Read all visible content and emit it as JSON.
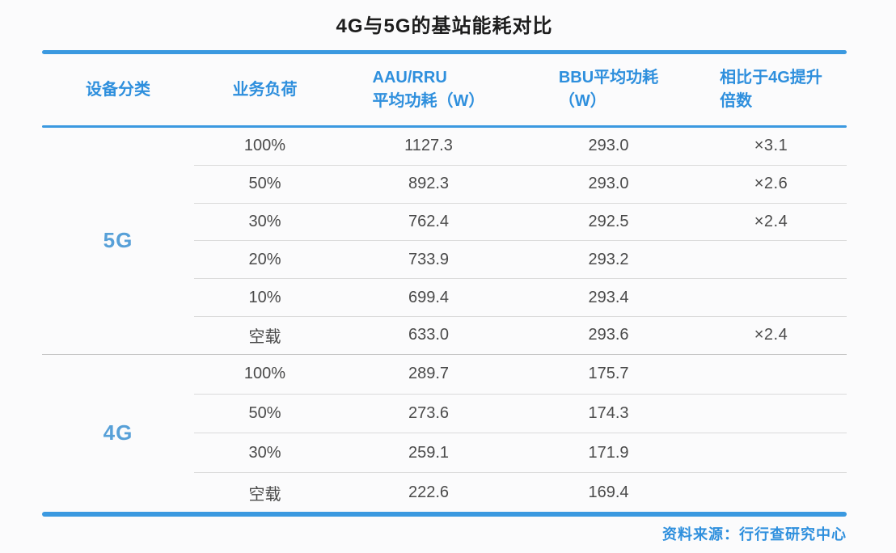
{
  "title": "4G与5G的基站能耗对比",
  "colors": {
    "accent_line": "#3b99e0",
    "header_text": "#2e8fdd",
    "category_text": "#57a0d8",
    "data_text": "#4a4a4a",
    "source_text": "#2e8fdd",
    "row_divider": "#dbdbdb",
    "group_divider": "#c6c6c6",
    "background": "#fbfbfc"
  },
  "table": {
    "headers": [
      "设备分类",
      "业务负荷",
      "AAU/RRU\n平均功耗（W）",
      "BBU平均功耗\n（W）",
      "相比于4G提升\n倍数"
    ],
    "groups": [
      {
        "label": "5G",
        "rows": [
          [
            "100%",
            "1127.3",
            "293.0",
            "×3.1"
          ],
          [
            "50%",
            "892.3",
            "293.0",
            "×2.6"
          ],
          [
            "30%",
            "762.4",
            "292.5",
            "×2.4"
          ],
          [
            "20%",
            "733.9",
            "293.2",
            ""
          ],
          [
            "10%",
            "699.4",
            "293.4",
            ""
          ],
          [
            "空载",
            "633.0",
            "293.6",
            "×2.4"
          ]
        ]
      },
      {
        "label": "4G",
        "rows": [
          [
            "100%",
            "289.7",
            "175.7",
            ""
          ],
          [
            "50%",
            "273.6",
            "174.3",
            ""
          ],
          [
            "30%",
            "259.1",
            "171.9",
            ""
          ],
          [
            "空载",
            "222.6",
            "169.4",
            ""
          ]
        ]
      }
    ]
  },
  "source": "资料来源：行行查研究中心"
}
